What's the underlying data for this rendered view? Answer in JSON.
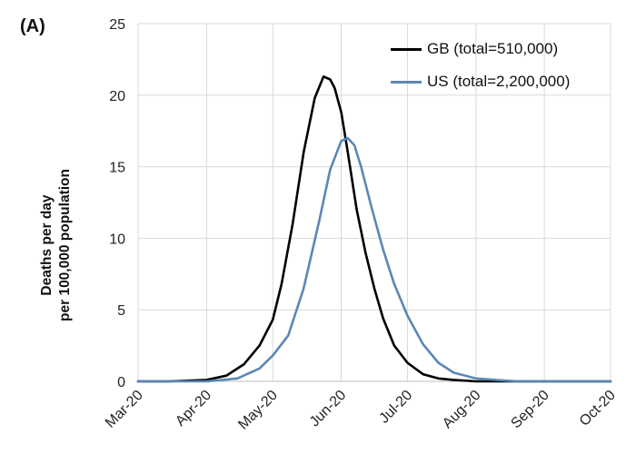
{
  "panel_label": "(A)",
  "chart_data": {
    "type": "line",
    "ylabel_lines": [
      "Deaths per day",
      "per 100,000 population"
    ],
    "ylim": [
      0,
      25
    ],
    "yticks": [
      0,
      5,
      10,
      15,
      20,
      25
    ],
    "xticks": [
      "Mar-20",
      "Apr-20",
      "May-20",
      "Jun-20",
      "Jul-20",
      "Aug-20",
      "Sep-20",
      "Oct-20"
    ],
    "xlim": [
      "2020-03-01",
      "2020-10-01"
    ],
    "grid": true,
    "legend_position": "top-right",
    "series": [
      {
        "name": "GB (total=510,000)",
        "color": "#000000",
        "x": [
          "2020-03-01",
          "2020-03-15",
          "2020-04-01",
          "2020-04-10",
          "2020-04-18",
          "2020-04-25",
          "2020-05-01",
          "2020-05-05",
          "2020-05-10",
          "2020-05-15",
          "2020-05-20",
          "2020-05-24",
          "2020-05-27",
          "2020-05-29",
          "2020-06-01",
          "2020-06-04",
          "2020-06-08",
          "2020-06-12",
          "2020-06-16",
          "2020-06-20",
          "2020-06-25",
          "2020-07-01",
          "2020-07-08",
          "2020-07-15",
          "2020-07-22",
          "2020-08-01",
          "2020-08-15",
          "2020-09-01",
          "2020-10-01"
        ],
        "y": [
          0,
          0,
          0.1,
          0.4,
          1.2,
          2.5,
          4.3,
          6.8,
          11.0,
          16.0,
          19.8,
          21.3,
          21.1,
          20.5,
          18.8,
          16.0,
          12.0,
          9.0,
          6.5,
          4.4,
          2.5,
          1.3,
          0.5,
          0.2,
          0.1,
          0,
          0,
          0,
          0
        ]
      },
      {
        "name": "US (total=2,200,000)",
        "color": "#5b87b5",
        "x": [
          "2020-03-01",
          "2020-03-20",
          "2020-04-01",
          "2020-04-15",
          "2020-04-25",
          "2020-05-01",
          "2020-05-08",
          "2020-05-15",
          "2020-05-22",
          "2020-05-27",
          "2020-06-01",
          "2020-06-04",
          "2020-06-07",
          "2020-06-10",
          "2020-06-15",
          "2020-06-20",
          "2020-06-25",
          "2020-07-01",
          "2020-07-08",
          "2020-07-15",
          "2020-07-22",
          "2020-08-01",
          "2020-08-10",
          "2020-08-20",
          "2020-09-01",
          "2020-10-01"
        ],
        "y": [
          0,
          0,
          0,
          0.2,
          0.9,
          1.8,
          3.2,
          6.5,
          11.2,
          14.8,
          16.8,
          17.0,
          16.5,
          15.0,
          12.0,
          9.2,
          6.8,
          4.6,
          2.6,
          1.3,
          0.6,
          0.2,
          0.1,
          0,
          0,
          0
        ]
      }
    ]
  }
}
